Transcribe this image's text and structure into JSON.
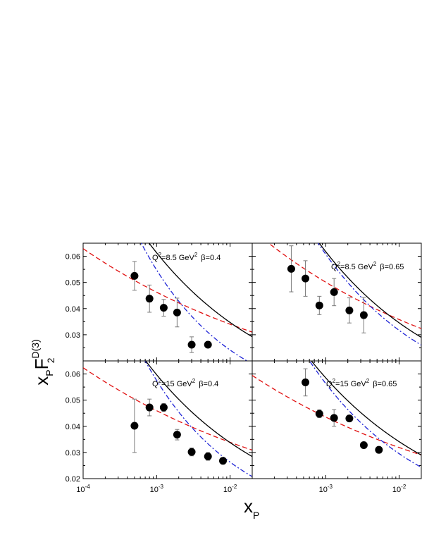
{
  "chart_data": {
    "type": "scatter",
    "layout": "2x2 shared axes",
    "xlabel": {
      "main": "x",
      "sub": "P"
    },
    "ylabel": {
      "main": "x",
      "sub1": "P",
      "main2": "F",
      "sub2": "2",
      "sup": "D(3)"
    },
    "x_scale": "log",
    "xlim": [
      0.0001,
      0.02
    ],
    "x_ticks": [
      {
        "value": 0.0001,
        "base": "10",
        "exp": "-4"
      },
      {
        "value": 0.001,
        "base": "10",
        "exp": "-3"
      },
      {
        "value": 0.01,
        "base": "10",
        "exp": "-2"
      }
    ],
    "panels": [
      {
        "id": "top-left",
        "label": {
          "q": "Q",
          "q_sup": "2",
          "q_text": "=8.5 GeV",
          "gev_sup": "2",
          "beta": "β=0.4"
        },
        "ylim": [
          0.02,
          0.065
        ],
        "y_ticks": [
          "0.03",
          "0.04",
          "0.05",
          "0.06"
        ],
        "y_tick_values": [
          0.03,
          0.04,
          0.05,
          0.06
        ],
        "points": [
          {
            "x": 0.0005,
            "y": 0.0525,
            "err": 0.0055
          },
          {
            "x": 0.0008,
            "y": 0.0438,
            "err": 0.0052
          },
          {
            "x": 0.00125,
            "y": 0.0403,
            "err": 0.0032
          },
          {
            "x": 0.0019,
            "y": 0.0385,
            "err": 0.0055
          },
          {
            "x": 0.003,
            "y": 0.0262,
            "err": 0.003
          },
          {
            "x": 0.005,
            "y": 0.0262,
            "err": 0.0012
          }
        ],
        "curves": {
          "solid": {
            "A": 0.0111,
            "k": 0.2475
          },
          "dashdot": {
            "A": 0.0047,
            "k": 0.3555
          },
          "dashed": {
            "A": 0.0184,
            "k": 0.1335
          }
        }
      },
      {
        "id": "top-right",
        "label": {
          "q": "Q",
          "q_sup": "2",
          "q_text": "=8.5 GeV",
          "gev_sup": "2",
          "beta": "β=0.65"
        },
        "ylim": [
          0.02,
          0.065
        ],
        "y_ticks": [],
        "y_tick_values": [],
        "points": [
          {
            "x": 0.00034,
            "y": 0.0552,
            "err": 0.0088
          },
          {
            "x": 0.00053,
            "y": 0.0515,
            "err": 0.0068
          },
          {
            "x": 0.00082,
            "y": 0.0412,
            "err": 0.0035
          },
          {
            "x": 0.0013,
            "y": 0.0463,
            "err": 0.0052
          },
          {
            "x": 0.0021,
            "y": 0.0393,
            "err": 0.0048
          },
          {
            "x": 0.0033,
            "y": 0.0375,
            "err": 0.0068
          }
        ],
        "curves": {
          "solid": {
            "A": 0.0108,
            "k": 0.2525
          },
          "dashdot": {
            "A": 0.0086,
            "k": 0.2831
          },
          "dashed": {
            "A": 0.0183,
            "k": 0.1458
          }
        }
      },
      {
        "id": "bottom-left",
        "label": {
          "q": "Q",
          "q_sup": "2",
          "q_text": "=15 GeV",
          "gev_sup": "2",
          "beta": "β=0.4"
        },
        "ylim": [
          0.02,
          0.065
        ],
        "y_ticks": [
          "0.02",
          "0.03",
          "0.04",
          "0.05",
          "0.06"
        ],
        "y_tick_values": [
          0.02,
          0.03,
          0.04,
          0.05,
          0.06
        ],
        "points": [
          {
            "x": 0.0005,
            "y": 0.0402,
            "err": 0.0102
          },
          {
            "x": 0.0008,
            "y": 0.0472,
            "err": 0.0032
          },
          {
            "x": 0.00125,
            "y": 0.0472,
            "err": 0.0015
          },
          {
            "x": 0.0019,
            "y": 0.0368,
            "err": 0.002
          },
          {
            "x": 0.003,
            "y": 0.0302,
            "err": 0.0015
          },
          {
            "x": 0.005,
            "y": 0.0285,
            "err": 0.0015
          },
          {
            "x": 0.008,
            "y": 0.0268,
            "err": 0.0012
          }
        ],
        "curves": {
          "solid": {
            "A": 0.0108,
            "k": 0.2476
          },
          "dashdot": {
            "A": 0.0055,
            "k": 0.3399
          },
          "dashed": {
            "A": 0.0184,
            "k": 0.1326
          }
        }
      },
      {
        "id": "bottom-right",
        "label": {
          "q": "Q",
          "q_sup": "2",
          "q_text": "=15 GeV",
          "gev_sup": "2",
          "beta": "β=0.65"
        },
        "ylim": [
          0.02,
          0.065
        ],
        "y_ticks": [],
        "y_tick_values": [],
        "points": [
          {
            "x": 0.00053,
            "y": 0.0568,
            "err": 0.0052
          },
          {
            "x": 0.00082,
            "y": 0.0448,
            "err": 0.0015
          },
          {
            "x": 0.0013,
            "y": 0.0432,
            "err": 0.0032
          },
          {
            "x": 0.0021,
            "y": 0.043,
            "err": 0.0012
          },
          {
            "x": 0.0033,
            "y": 0.0328,
            "err": 0.001
          },
          {
            "x": 0.0053,
            "y": 0.031,
            "err": 0.001
          }
        ],
        "curves": {
          "solid": {
            "A": 0.0116,
            "k": 0.2343
          },
          "dashdot": {
            "A": 0.0081,
            "k": 0.2809
          },
          "dashed": {
            "A": 0.0171,
            "k": 0.1353
          }
        }
      }
    ],
    "curve_colors": {
      "solid": "#000000",
      "dashdot": "#1f24d6",
      "dashed": "#e01010"
    },
    "marker_color": "#000000",
    "errorbar_color": "#7a7a7a",
    "grid": false,
    "legend": "none"
  }
}
